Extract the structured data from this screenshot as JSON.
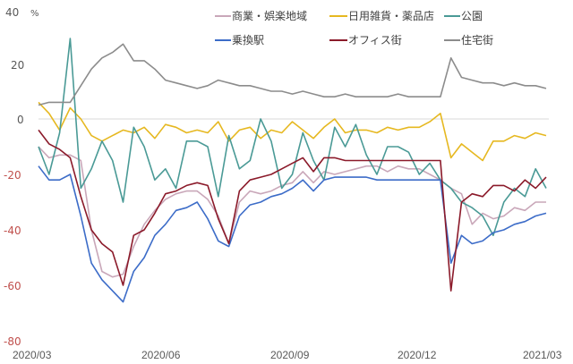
{
  "chart_data": {
    "type": "line",
    "title": "",
    "xlabel": "",
    "ylabel": "%",
    "ylim": [
      -80,
      40
    ],
    "y_ticks": [
      40,
      20,
      0,
      -20,
      -40,
      -60,
      -80
    ],
    "x_ticks": [
      "2020/03",
      "2020/06",
      "2020/09",
      "2020/12",
      "2021/03"
    ],
    "grid": false,
    "zero_line": true,
    "legend_position": "top",
    "x_months_from_start": [
      0,
      0.25,
      0.5,
      0.75,
      1,
      1.25,
      1.5,
      1.75,
      2,
      2.25,
      2.5,
      2.75,
      3,
      3.25,
      3.5,
      3.75,
      4,
      4.25,
      4.5,
      4.75,
      5,
      5.25,
      5.5,
      5.75,
      6,
      6.25,
      6.5,
      6.75,
      7,
      7.25,
      7.5,
      7.75,
      8,
      8.25,
      8.5,
      8.75,
      9,
      9.25,
      9.5,
      9.75,
      10,
      10.25,
      10.5,
      10.75,
      11,
      11.25,
      11.5,
      11.75,
      12
    ],
    "series": [
      {
        "name": "商業・娯楽地域",
        "color": "#c9a7b9",
        "values": [
          -10,
          -14,
          -13,
          -13,
          -15,
          -40,
          -55,
          -57,
          -56,
          -46,
          -38,
          -33,
          -29,
          -27,
          -26,
          -26,
          -29,
          -35,
          -45,
          -30,
          -26,
          -27,
          -26,
          -24,
          -23,
          -19,
          -23,
          -19,
          -20,
          -19,
          -18,
          -17,
          -17,
          -19,
          -17,
          -18,
          -18,
          -20,
          -22,
          -25,
          -27,
          -38,
          -34,
          -36,
          -35,
          -32,
          -33,
          -30,
          -30
        ]
      },
      {
        "name": "日用雑貨・薬品店",
        "color": "#e6b820",
        "values": [
          6,
          2,
          -4,
          4,
          0,
          -6,
          -8,
          -6,
          -4,
          -5,
          -3,
          -7,
          -2,
          -3,
          -5,
          -4,
          -5,
          -1,
          -8,
          -4,
          -3,
          -7,
          -4,
          -5,
          -1,
          -4,
          -7,
          -3,
          0,
          -5,
          -4,
          -4,
          -5,
          -3,
          -4,
          -3,
          -3,
          -1,
          2,
          -14,
          -9,
          -12,
          -15,
          -8,
          -8,
          -6,
          -7,
          -5,
          -6
        ]
      },
      {
        "name": "公園",
        "color": "#4a9a96",
        "values": [
          -10,
          -20,
          -5,
          29,
          -25,
          -18,
          -8,
          -15,
          -30,
          -3,
          -10,
          -22,
          -18,
          -25,
          -8,
          -8,
          -10,
          -28,
          -6,
          -18,
          -15,
          0,
          -8,
          -25,
          -20,
          -5,
          -15,
          -22,
          -3,
          -10,
          -2,
          -13,
          -20,
          -10,
          -10,
          -12,
          -20,
          -16,
          -22,
          -25,
          -30,
          -32,
          -35,
          -42,
          -30,
          -25,
          -28,
          -18,
          -25
        ]
      },
      {
        "name": "乗換駅",
        "color": "#3c6cc8",
        "values": [
          -17,
          -22,
          -22,
          -20,
          -35,
          -52,
          -58,
          -62,
          -66,
          -55,
          -50,
          -42,
          -38,
          -33,
          -32,
          -30,
          -36,
          -44,
          -46,
          -35,
          -31,
          -30,
          -28,
          -27,
          -25,
          -22,
          -26,
          -22,
          -21,
          -21,
          -21,
          -21,
          -22,
          -22,
          -22,
          -22,
          -22,
          -22,
          -22,
          -52,
          -42,
          -45,
          -44,
          -41,
          -40,
          -38,
          -37,
          -35,
          -34
        ]
      },
      {
        "name": "オフィス街",
        "color": "#8b1a2a",
        "values": [
          -4,
          -9,
          -11,
          -14,
          -28,
          -40,
          -45,
          -48,
          -60,
          -42,
          -40,
          -34,
          -27,
          -26,
          -24,
          -23,
          -24,
          -36,
          -45,
          -26,
          -22,
          -21,
          -20,
          -18,
          -16,
          -14,
          -19,
          -14,
          -14,
          -15,
          -15,
          -15,
          -15,
          -15,
          -15,
          -15,
          -15,
          -15,
          -15,
          -62,
          -30,
          -27,
          -28,
          -24,
          -24,
          -26,
          -22,
          -25,
          -21
        ]
      },
      {
        "name": "住宅街",
        "color": "#8c8c8c",
        "values": [
          5,
          6,
          6,
          6,
          12,
          18,
          22,
          24,
          27,
          21,
          21,
          18,
          14,
          13,
          12,
          11,
          12,
          14,
          13,
          12,
          12,
          11,
          10,
          10,
          9,
          10,
          9,
          8,
          8,
          9,
          8,
          8,
          8,
          8,
          9,
          8,
          8,
          8,
          8,
          22,
          15,
          14,
          13,
          13,
          12,
          13,
          12,
          12,
          11
        ]
      }
    ]
  },
  "axis": {
    "unit": "%",
    "y_labels": [
      "40",
      "20",
      "0",
      "-20",
      "-40",
      "-60",
      "-80"
    ],
    "x_labels": [
      "2020/03",
      "2020/06",
      "2020/09",
      "2020/12",
      "2021/03"
    ]
  },
  "legend": [
    {
      "label": "商業・娯楽地域",
      "color": "#c9a7b9"
    },
    {
      "label": "日用雑貨・薬品店",
      "color": "#e6b820"
    },
    {
      "label": "公園",
      "color": "#4a9a96"
    },
    {
      "label": "乗換駅",
      "color": "#3c6cc8"
    },
    {
      "label": "オフィス街",
      "color": "#8b1a2a"
    },
    {
      "label": "住宅街",
      "color": "#8c8c8c"
    }
  ]
}
